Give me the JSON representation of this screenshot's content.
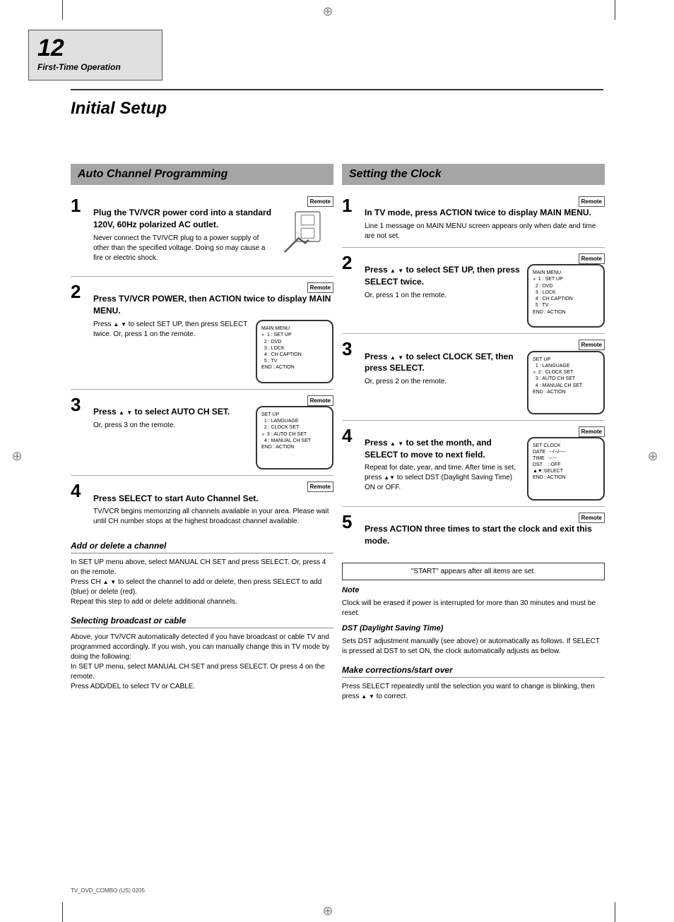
{
  "page_number": "12",
  "page_label": "First-Time Operation",
  "main_title": "Initial Setup",
  "colors": {
    "section_bar_bg": "#a5a5a5",
    "tab_bg": "#e0e0e0",
    "rule": "#333333",
    "text": "#000000",
    "background": "#ffffff"
  },
  "left": {
    "section_title": "Auto Channel Programming",
    "steps": [
      {
        "num": "1",
        "head": "Plug the TV/VCR power cord into a standard 120V, 60Hz polarized AC outlet.",
        "remote": "Remote",
        "body": "Never connect the TV/VCR plug to a power supply of other than the specified voltage. Doing so may cause a fire or electric shock.",
        "has_illustration": true
      },
      {
        "num": "2",
        "head": "Press TV/VCR POWER, then ACTION twice to display MAIN MENU.",
        "remote": "Remote",
        "body": "Press <span class='tri-up'></span> <span class='tri-dn'></span> to select SET UP, then press SELECT twice. Or, press 1 on the remote.",
        "tv": {
          "lines": [
            "MAIN MENU",
            "<span class='tri-rt'></span> 1 : SET UP",
            "&nbsp;&nbsp;2 : DVD",
            "&nbsp;&nbsp;3 : LOCK",
            "&nbsp;&nbsp;4 : CH CAPTION",
            "&nbsp;&nbsp;5 : TV",
            "END : ACTION"
          ]
        }
      },
      {
        "num": "3",
        "head": "Press <span class='tri-up'></span> <span class='tri-dn'></span> to select AUTO CH SET.",
        "remote": "Remote",
        "body": "Or, press 3 on the remote.",
        "tv": {
          "lines": [
            "SET UP",
            "&nbsp;&nbsp;1 : LANGUAGE",
            "&nbsp;&nbsp;2 : CLOCK SET",
            "<span class='tri-rt'></span> 3 : AUTO CH SET",
            "&nbsp;&nbsp;4 : MANUAL CH SET",
            "END : ACTION"
          ]
        }
      },
      {
        "num": "4",
        "head": "Press SELECT to start Auto Channel Set.",
        "remote": "Remote",
        "body": "TV/VCR begins memorizing all channels available in your area. Please wait until CH number stops at the highest broadcast channel available.",
        "no_border": true
      }
    ],
    "subhead1": "Add or delete a channel",
    "subbody1": "In SET UP menu above, select MANUAL CH SET and press SELECT. Or, press 4 on the remote.<br>Press CH <span class='tri-up'></span> <span class='tri-dn'></span> to select the channel to add or delete, then press SELECT to add (blue) or delete (red).<br>Repeat this step to add or delete additional channels.",
    "subhead2": "Selecting broadcast or cable",
    "subbody2": "Above, your TV/VCR automatically detected if you have broadcast or cable TV and programmed accordingly. If you wish, you can manually change this in TV mode by doing the following:<br>In SET UP menu, select MANUAL CH SET and press SELECT. Or press 4 on the remote.<br>Press ADD/DEL to select TV or CABLE."
  },
  "right": {
    "section_title": "Setting the Clock",
    "steps": [
      {
        "num": "1",
        "remote": "Remote",
        "head": "In TV mode, press ACTION twice to display MAIN MENU.",
        "body": "Line 1 message on MAIN MENU screen appears only when date and time are not set.",
        "no_border": false
      },
      {
        "num": "2",
        "remote": "Remote",
        "head": "Press <span class='tri-up'></span> <span class='tri-dn'></span> to select SET UP, then press SELECT twice.",
        "body": "Or, press 1 on the remote.",
        "tv": {
          "lines": [
            "MAIN MENU",
            "<span class='tri-rt'></span> 1 : SET UP",
            "&nbsp;&nbsp;2 : DVD",
            "&nbsp;&nbsp;3 : LOCK",
            "&nbsp;&nbsp;4 : CH CAPTION",
            "&nbsp;&nbsp;5 : TV",
            "END : ACTION"
          ]
        }
      },
      {
        "num": "3",
        "remote": "Remote",
        "head": "Press <span class='tri-up'></span> <span class='tri-dn'></span> to select CLOCK SET, then press SELECT.",
        "body": "Or, press 2 on the remote.",
        "tv": {
          "lines": [
            "SET UP",
            "&nbsp;&nbsp;1 : LANGUAGE",
            "<span class='tri-rt'></span> 2 : CLOCK SET",
            "&nbsp;&nbsp;3 : AUTO CH SET",
            "&nbsp;&nbsp;4 : MANUAL CH SET",
            "END : ACTION"
          ]
        }
      },
      {
        "num": "4",
        "remote": "Remote",
        "head": "Press <span class='tri-up'></span> <span class='tri-dn'></span> to set the month, and SELECT to move to next field.",
        "body": "Repeat for date, year, and time. After time is set, press <span class='tri-up'></span><span class='tri-dn'></span> to select DST (Daylight Saving Time) ON or OFF.",
        "tv": {
          "lines": [
            "SET CLOCK",
            "DATE &nbsp;&nbsp;--/--/----",
            "TIME &nbsp;&nbsp;--:--",
            "DST &nbsp;&nbsp;&nbsp;: OFF",
            "",
            "▲▼:SELECT",
            "END : ACTION"
          ]
        }
      },
      {
        "num": "5",
        "remote": "Remote",
        "head": "Press ACTION three times to start the clock and exit this mode.",
        "body": "",
        "no_border": true
      }
    ],
    "menu_box": "\"START\" appears after all items are set.",
    "note_label": "Note",
    "note_body": "Clock will be erased if power is interrupted for more than 30 minutes and must be reset.",
    "sig_head": "DST (Daylight Saving Time)",
    "sig_body": "Sets DST adjustment manually (see above) or automatically as follows. If SELECT is pressed at DST to set ON, the clock automatically adjusts as below.",
    "subhead": "Make corrections/start over",
    "subbody": "Press SELECT repeatedly until the selection you want to change is blinking, then press <span class='tri-up'></span> <span class='tri-dn'></span> to correct."
  },
  "footer": "TV_DVD_COMBO (US) 0205"
}
